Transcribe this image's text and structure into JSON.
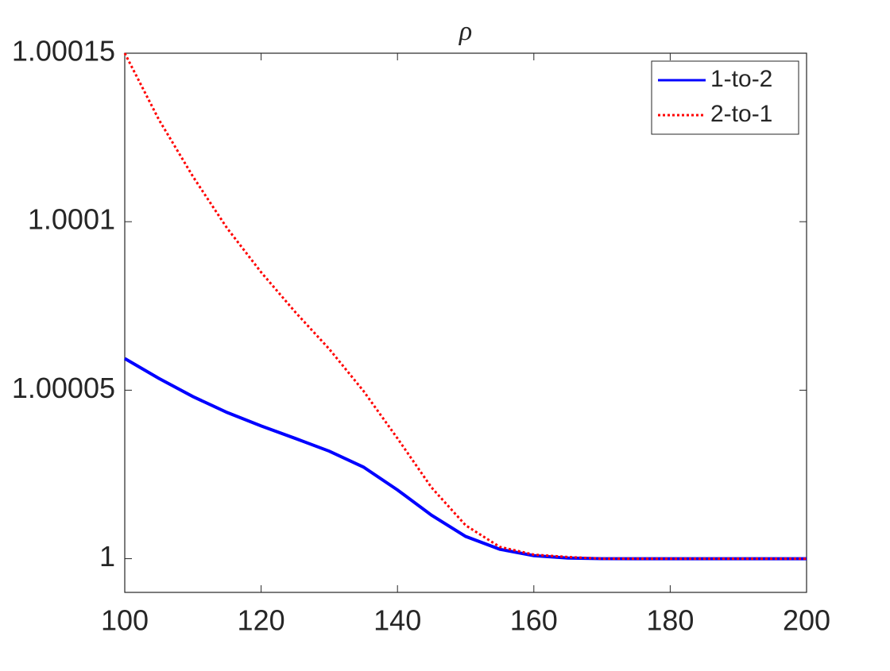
{
  "chart_data": {
    "type": "line",
    "title": "ρ",
    "x": [
      100,
      105,
      110,
      115,
      120,
      125,
      130,
      135,
      140,
      145,
      150,
      155,
      160,
      165,
      170,
      175,
      180,
      185,
      190,
      195,
      200
    ],
    "series": [
      {
        "name": "1-to-2",
        "color": "#0000ff",
        "style": "solid",
        "values": [
          1.0000594,
          1.0000535,
          1.0000481,
          1.0000434,
          1.0000394,
          1.0000357,
          1.0000319,
          1.0000272,
          1.0000204,
          1.0000129,
          1.0000066,
          1.0000028,
          1.0000009,
          1.0000002,
          1,
          1,
          1,
          1,
          1,
          1,
          1
        ]
      },
      {
        "name": "2-to-1",
        "color": "#ff0000",
        "style": "dotted",
        "values": [
          1.00015,
          1.0001303,
          1.0001134,
          1.0000981,
          1.000085,
          1.0000732,
          1.0000622,
          1.0000498,
          1.0000357,
          1.0000211,
          1.0000099,
          1.0000035,
          1.0000012,
          1.0000005,
          1,
          1,
          1,
          1,
          1,
          1,
          1
        ]
      }
    ],
    "xlim": [
      100,
      200
    ],
    "xticks": [
      100,
      120,
      140,
      160,
      180,
      200
    ],
    "ylim": [
      0.99999,
      1.00015
    ],
    "yticks": [
      1,
      1.00005,
      1.0001,
      1.00015
    ],
    "legend": "northeast",
    "grid": false
  }
}
